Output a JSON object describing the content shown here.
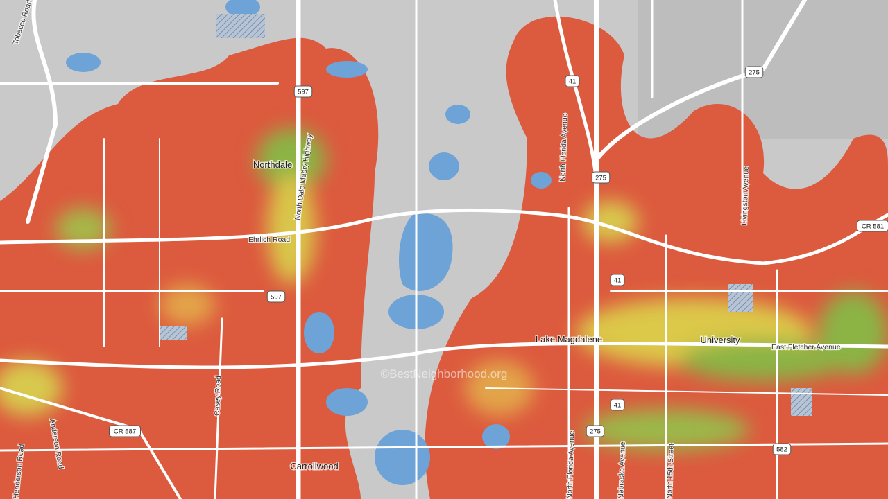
{
  "places": [
    "Northdale",
    "Lake Magdalene",
    "University",
    "Carrollwood"
  ],
  "roads": [
    "Tobacco Road",
    "North Dale Mabry Highway",
    "Ehrlich Road",
    "East Fletcher Avenue",
    "North Florida Avenue",
    "North Florida Avenue",
    "Livingston Avenue",
    "Henderson Road",
    "Anderson Road",
    "Casey Road",
    "Nebraska Avenue",
    "North 15th Street"
  ],
  "shields": [
    "597",
    "597",
    "41",
    "41",
    "41",
    "275",
    "275",
    "275",
    "CR 581",
    "CR 587",
    "582"
  ],
  "watermark": "©BestNeighborhood.org"
}
